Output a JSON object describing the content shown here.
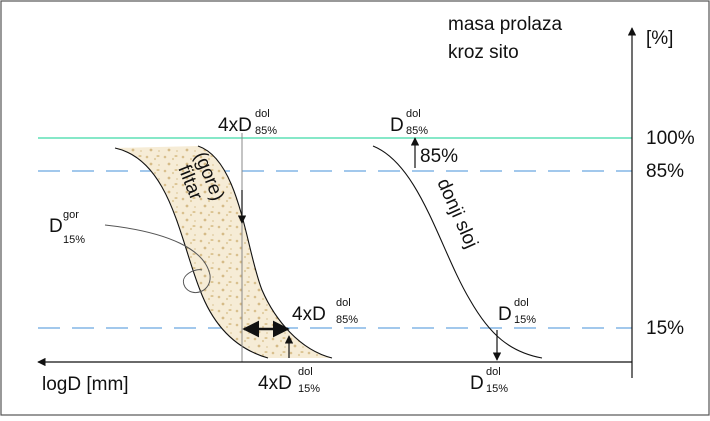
{
  "axis": {
    "y_title_line1": "masa prolaza",
    "y_title_line2": "kroz sito",
    "y_unit": "[%]",
    "x_title": "logD [mm]"
  },
  "levels": {
    "p100": "100%",
    "p85": "85%",
    "p15": "15%"
  },
  "curves": {
    "filter_label_line1": "filtar",
    "filter_label_line2": "(gore)",
    "base_label": "donji sloj"
  },
  "annotations": {
    "d_gor_15": {
      "main": "D",
      "sup": "gor",
      "sub": "15%"
    },
    "four_d_dol_85_top": {
      "main": "4xD",
      "sup": "dol",
      "sub": "85%"
    },
    "four_d_dol_85_mid": {
      "main": "4xD",
      "sup": "dol",
      "sub": "85%"
    },
    "four_d_dol_15_bottom": {
      "main": "4xD",
      "sup": "dol",
      "sub": "15%"
    },
    "d_dol_85_top": {
      "main": "D",
      "sup": "dol",
      "sub": "85%"
    },
    "d_dol_85_pct": "85%",
    "d_dol_15_mid": {
      "main": "D",
      "sup": "dol",
      "sub": "15%"
    },
    "d_dol_15_bottom": {
      "main": "D",
      "sup": "dol",
      "sub": "15%"
    }
  },
  "colors": {
    "line_100": "#3dd9a6",
    "dashed_85_15": "#6aa8e0",
    "filter_fill": "#f3e7cc",
    "filter_dots": "#dcc79a",
    "ink": "#111111"
  }
}
